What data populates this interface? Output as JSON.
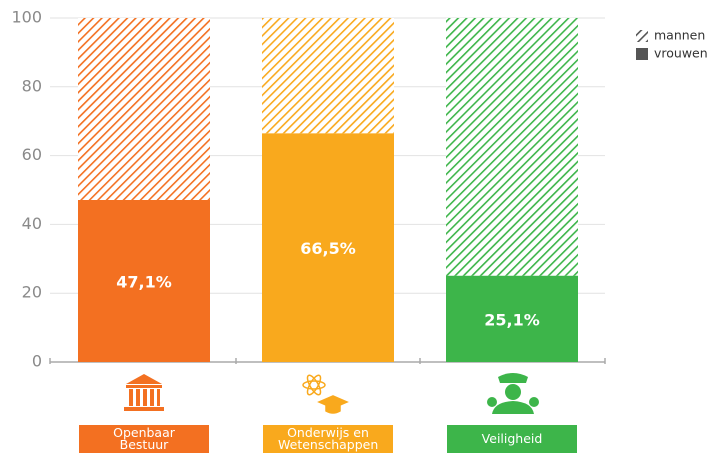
{
  "chart_data": {
    "type": "stacked_bar",
    "categories": [
      "Openbaar Bestuur",
      "Onderwijs en Wetenschappen",
      "Veiligheid"
    ],
    "colors": [
      "#f37021",
      "#f9a91d",
      "#3db54a"
    ],
    "series": [
      {
        "name": "vrouwen",
        "color": "#555555",
        "values": [
          47.1,
          66.5,
          25.1
        ],
        "value_labels": [
          "47,1%",
          "66,5%",
          "25,1%"
        ]
      },
      {
        "name": "mannen",
        "color": "#555555",
        "hatch": true,
        "values": [
          52.9,
          33.5,
          74.9
        ]
      }
    ],
    "ylim": [
      0,
      100
    ],
    "yticks": [
      0,
      20,
      40,
      60,
      80,
      100
    ],
    "grid": true,
    "legend": "top-right"
  }
}
